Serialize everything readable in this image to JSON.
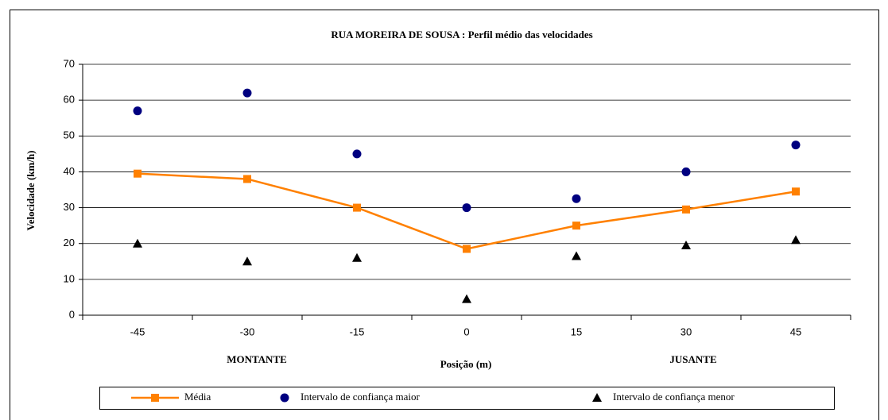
{
  "chart_data": {
    "type": "line",
    "title": "RUA MOREIRA DE SOUSA : Perfil médio das velocidades",
    "x_label": "Posição (m)",
    "y_label": "Velocidade (km/h)",
    "annotations": [
      "MONTANTE",
      "JUSANTE"
    ],
    "categories": [
      "-45",
      "-30",
      "-15",
      "0",
      "15",
      "30",
      "45"
    ],
    "series": [
      {
        "name": "Média",
        "color": "#ff8000",
        "marker": "square",
        "line": true,
        "values": [
          39.5,
          38,
          30,
          18.5,
          25,
          29.5,
          34.5
        ]
      },
      {
        "name": "Intervalo de confiança maior",
        "color": "#000080",
        "marker": "circle",
        "line": false,
        "values": [
          57,
          62,
          45,
          30,
          32.5,
          40,
          47.5
        ]
      },
      {
        "name": "Intervalo de confiança menor",
        "color": "#000000",
        "marker": "triangle",
        "line": false,
        "values": [
          20,
          15,
          16,
          4.5,
          16.5,
          19.5,
          21
        ]
      }
    ],
    "ylim": [
      0,
      70
    ],
    "yticks": [
      0,
      10,
      20,
      30,
      40,
      50,
      60,
      70
    ],
    "grid": true,
    "legend": "bottom"
  }
}
